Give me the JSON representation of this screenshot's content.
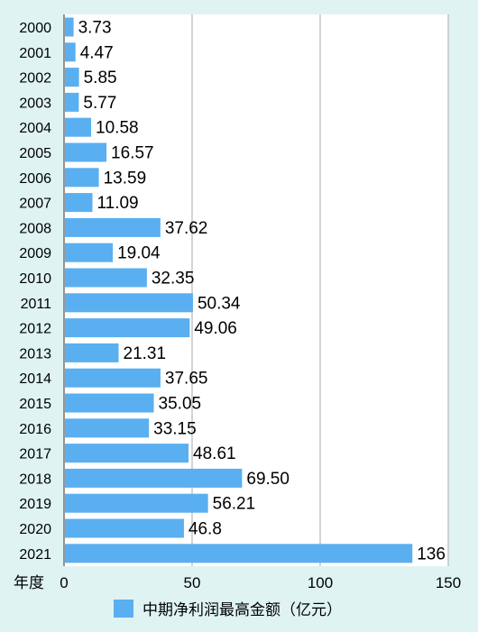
{
  "chart_data": {
    "type": "bar",
    "orientation": "horizontal",
    "categories": [
      "2000",
      "2001",
      "2002",
      "2003",
      "2004",
      "2005",
      "2006",
      "2007",
      "2008",
      "2009",
      "2010",
      "2011",
      "2012",
      "2013",
      "2014",
      "2015",
      "2016",
      "2017",
      "2018",
      "2019",
      "2020",
      "2021"
    ],
    "value_labels": [
      "3.73",
      "4.47",
      "5.85",
      "5.77",
      "10.58",
      "16.57",
      "13.59",
      "11.09",
      "37.62",
      "19.04",
      "32.35",
      "50.34",
      "49.06",
      "21.31",
      "37.65",
      "35.05",
      "33.15",
      "48.61",
      "69.50",
      "56.21",
      "46.8",
      "136"
    ],
    "series": [
      {
        "name": "中期净利润最高金额（亿元）",
        "values": [
          3.73,
          4.47,
          5.85,
          5.77,
          10.58,
          16.57,
          13.59,
          11.09,
          37.62,
          19.04,
          32.35,
          50.34,
          49.06,
          21.31,
          37.65,
          35.05,
          33.15,
          48.61,
          69.5,
          56.21,
          46.8,
          136
        ]
      }
    ],
    "xlim": [
      0,
      150
    ],
    "xticks": [
      "0",
      "50",
      "100",
      "150"
    ],
    "ylabel": "年度",
    "grid": true,
    "legend_position": "bottom",
    "colors": {
      "bar": "#5aaff0",
      "background": "#dff3f3",
      "plot_background": "#ffffff",
      "grid": "#aaaaaa",
      "text": "#000000"
    }
  }
}
